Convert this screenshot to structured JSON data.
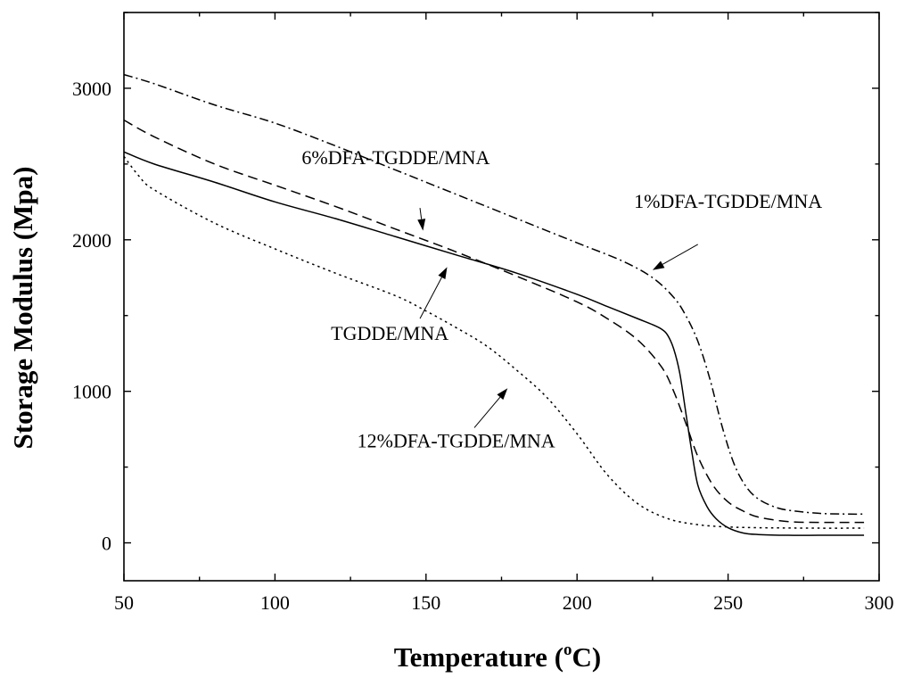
{
  "chart_data": {
    "type": "line",
    "title": "",
    "xlabel": "Temperature (",
    "xlabel_sup": "o",
    "xlabel_unit": "C)",
    "ylabel": "Storage Modulus  (Mpa)",
    "xlim": [
      50,
      300
    ],
    "ylim": [
      -250,
      3500
    ],
    "x_ticks": [
      50,
      100,
      150,
      200,
      250,
      300
    ],
    "y_ticks": [
      0,
      1000,
      2000,
      3000
    ],
    "grid": false,
    "series": [
      {
        "name": "TGDDE/MNA",
        "style": "solid",
        "x": [
          50,
          60,
          80,
          100,
          120,
          140,
          160,
          180,
          200,
          210,
          220,
          225,
          228,
          230,
          232,
          234,
          236,
          238,
          240,
          243,
          246,
          250,
          255,
          260,
          270,
          280,
          290,
          295
        ],
        "y": [
          2580,
          2500,
          2380,
          2250,
          2140,
          2020,
          1900,
          1780,
          1640,
          1560,
          1480,
          1440,
          1410,
          1370,
          1280,
          1120,
          860,
          600,
          380,
          240,
          160,
          100,
          65,
          55,
          50,
          50,
          50,
          50
        ]
      },
      {
        "name": "6%DFA-TGDDE/MNA",
        "style": "dashed",
        "x": [
          50,
          60,
          80,
          100,
          120,
          140,
          160,
          180,
          200,
          210,
          220,
          228,
          232,
          236,
          240,
          245,
          250,
          255,
          260,
          270,
          280,
          290,
          295
        ],
        "y": [
          2790,
          2680,
          2500,
          2360,
          2220,
          2070,
          1920,
          1760,
          1590,
          1480,
          1340,
          1160,
          1000,
          790,
          570,
          380,
          270,
          210,
          170,
          140,
          135,
          135,
          135
        ]
      },
      {
        "name": "1%DFA-TGDDE/MNA",
        "style": "dashdot",
        "x": [
          50,
          60,
          80,
          100,
          120,
          140,
          160,
          180,
          200,
          215,
          225,
          232,
          236,
          240,
          244,
          248,
          252,
          256,
          260,
          265,
          270,
          280,
          290,
          295
        ],
        "y": [
          3090,
          3030,
          2890,
          2770,
          2620,
          2460,
          2300,
          2140,
          1980,
          1860,
          1750,
          1620,
          1500,
          1330,
          1080,
          770,
          520,
          370,
          290,
          240,
          215,
          195,
          190,
          190
        ]
      },
      {
        "name": "12%DFA-TGDDE/MNA",
        "style": "dotted",
        "x": [
          50,
          55,
          60,
          80,
          100,
          120,
          140,
          150,
          160,
          170,
          180,
          190,
          200,
          210,
          220,
          230,
          240,
          250,
          260,
          270,
          280,
          290,
          295
        ],
        "y": [
          2550,
          2420,
          2330,
          2110,
          1940,
          1780,
          1630,
          1530,
          1420,
          1300,
          1140,
          960,
          720,
          450,
          260,
          160,
          120,
          105,
          100,
          98,
          97,
          97,
          97
        ]
      }
    ],
    "annotations": [
      {
        "label": "6%DFA-TGDDE/MNA",
        "text_at": [
          140,
          2500
        ],
        "arrow_from": [
          148,
          2210
        ],
        "arrow_to": [
          149,
          2060
        ]
      },
      {
        "label": "1%DFA-TGDDE/MNA",
        "text_at": [
          250,
          2210
        ],
        "arrow_from": [
          240,
          1970
        ],
        "arrow_to": [
          225,
          1800
        ]
      },
      {
        "label": "TGDDE/MNA",
        "text_at": [
          138,
          1340
        ],
        "arrow_from": [
          148,
          1480
        ],
        "arrow_to": [
          157,
          1820
        ]
      },
      {
        "label": "12%DFA-TGDDE/MNA",
        "text_at": [
          160,
          630
        ],
        "arrow_from": [
          166,
          760
        ],
        "arrow_to": [
          177,
          1020
        ]
      }
    ]
  }
}
